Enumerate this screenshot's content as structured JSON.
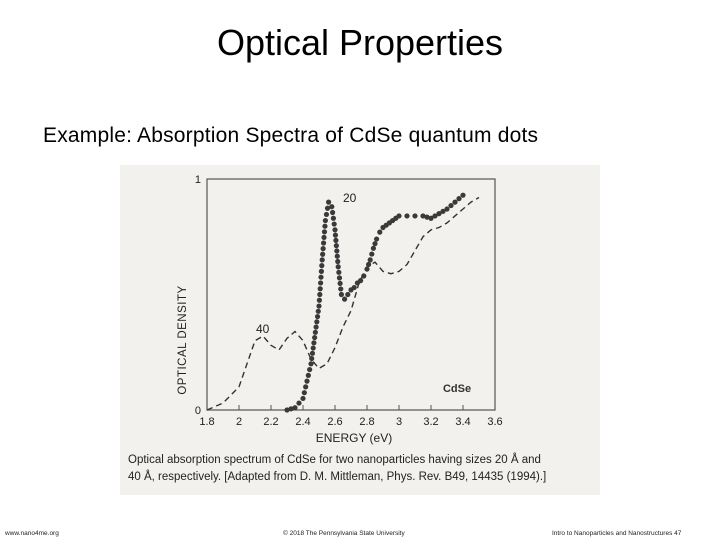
{
  "slide": {
    "title": "Optical Properties",
    "subtitle": "Example: Absorption Spectra of CdSe quantum dots",
    "caption_line1": "Optical absorption spectrum of CdSe for two nanoparticles having sizes 20 Å and",
    "caption_line2": "40 Å, respectively. [Adapted from D. M. Mittleman, Phys. Rev. B49, 14435 (1994).]",
    "footer_left": "www.nano4me.org",
    "footer_center": "© 2018 The Pennsylvania State University",
    "footer_right": "Intro to Nanoparticles and Nanostructures 47"
  },
  "chart_data": {
    "type": "line",
    "xlabel": "ENERGY (eV)",
    "ylabel": "OPTICAL DENSITY",
    "xlim": [
      1.8,
      3.6
    ],
    "ylim": [
      0,
      1
    ],
    "xticks": [
      "1.8",
      "2",
      "2.2",
      "2.4",
      "2.6",
      "2.8",
      "3",
      "3.2",
      "3.4",
      "3.6"
    ],
    "yticks": [
      "0",
      "1"
    ],
    "inset_label": "CdSe",
    "grid": false,
    "series": [
      {
        "name": "40",
        "style": "dashed",
        "x": [
          1.8,
          1.9,
          2.0,
          2.05,
          2.1,
          2.15,
          2.2,
          2.25,
          2.3,
          2.35,
          2.4,
          2.45,
          2.5,
          2.55,
          2.6,
          2.65,
          2.7,
          2.75,
          2.8,
          2.85,
          2.9,
          2.95,
          3.0,
          3.05,
          3.1,
          3.15,
          3.2,
          3.25,
          3.3,
          3.35,
          3.4,
          3.45,
          3.5
        ],
        "values": [
          0.0,
          0.03,
          0.1,
          0.2,
          0.3,
          0.32,
          0.28,
          0.26,
          0.31,
          0.34,
          0.3,
          0.22,
          0.18,
          0.2,
          0.27,
          0.36,
          0.43,
          0.55,
          0.62,
          0.64,
          0.6,
          0.59,
          0.6,
          0.63,
          0.69,
          0.75,
          0.78,
          0.79,
          0.81,
          0.84,
          0.87,
          0.9,
          0.92
        ]
      },
      {
        "name": "20",
        "style": "dotted",
        "x": [
          2.3,
          2.35,
          2.4,
          2.45,
          2.5,
          2.52,
          2.54,
          2.56,
          2.58,
          2.6,
          2.62,
          2.64,
          2.66,
          2.68,
          2.7,
          2.72,
          2.74,
          2.76,
          2.78,
          2.8,
          2.82,
          2.84,
          2.86,
          2.88,
          2.9,
          2.92,
          2.94,
          2.96,
          2.98,
          3.0,
          3.05,
          3.1,
          3.15,
          3.2,
          3.25,
          3.3,
          3.35,
          3.4
        ],
        "values": [
          0.0,
          0.01,
          0.05,
          0.2,
          0.45,
          0.65,
          0.82,
          0.9,
          0.88,
          0.78,
          0.62,
          0.5,
          0.48,
          0.5,
          0.52,
          0.53,
          0.55,
          0.56,
          0.58,
          0.61,
          0.65,
          0.7,
          0.74,
          0.77,
          0.79,
          0.8,
          0.81,
          0.82,
          0.83,
          0.84,
          0.84,
          0.84,
          0.84,
          0.83,
          0.85,
          0.87,
          0.9,
          0.93
        ]
      }
    ],
    "annotations": [
      "40",
      "20"
    ]
  }
}
